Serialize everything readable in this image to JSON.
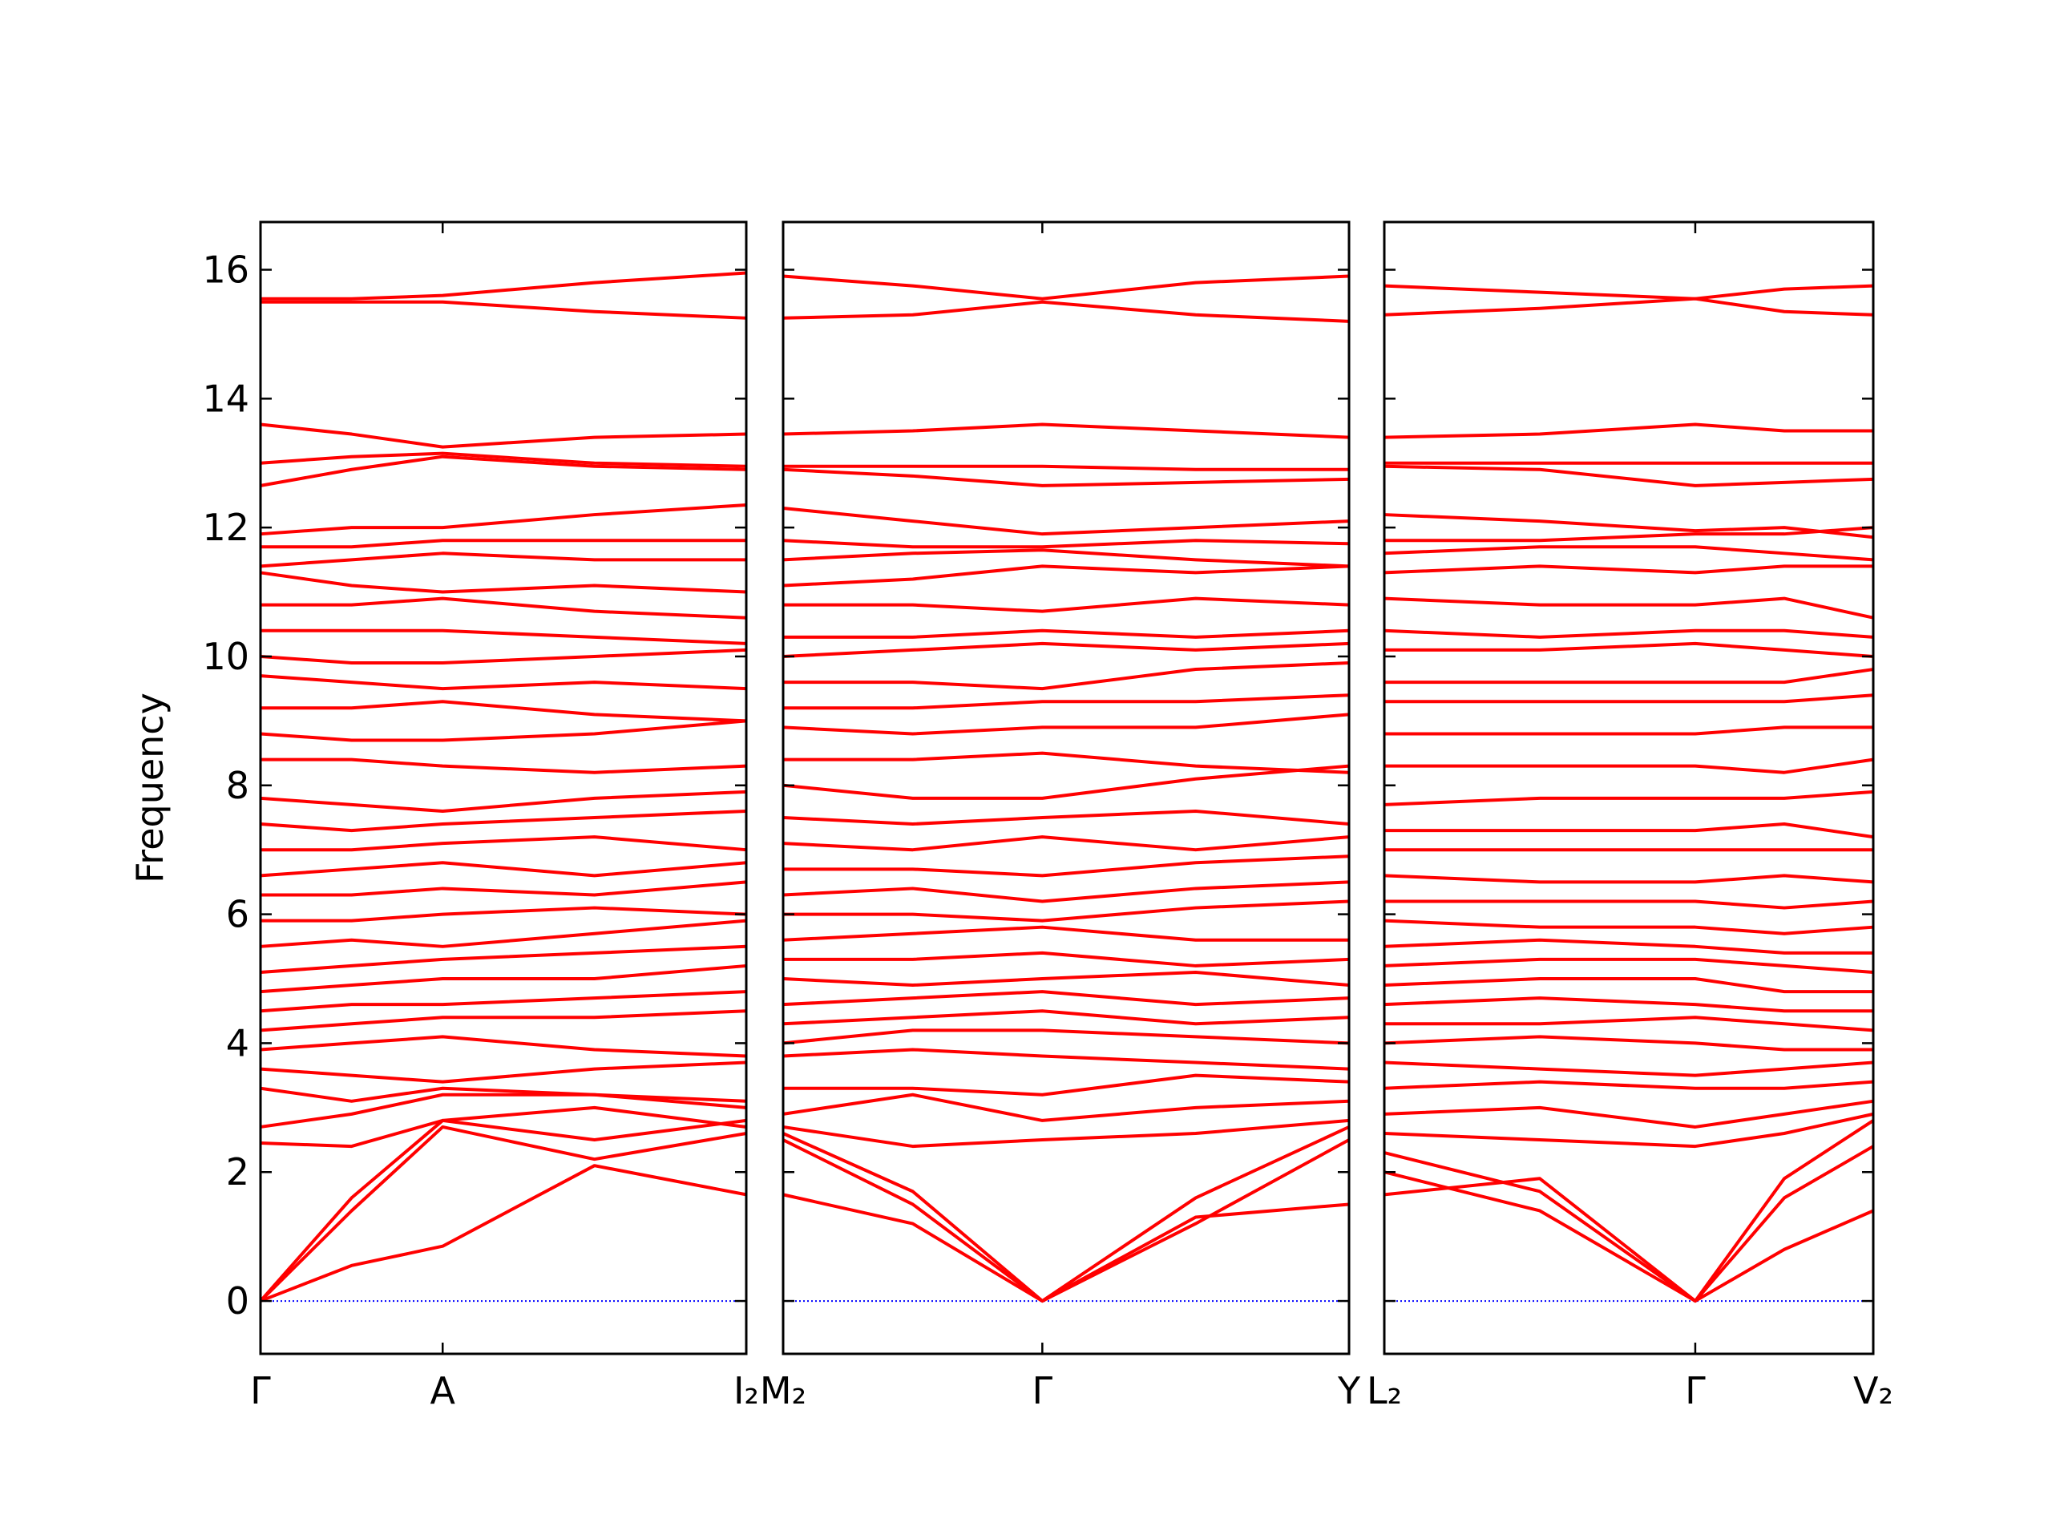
{
  "chart_data": [
    {
      "type": "line",
      "ylabel": "Frequency",
      "color": "#ff0000",
      "hline": 0,
      "hline_color": "#0000ff",
      "xlim": [
        0,
        1
      ],
      "xticks": [
        {
          "value": 0,
          "label": "Γ"
        },
        {
          "value": 0.375,
          "label": "A"
        },
        {
          "value": 1,
          "label": "I₂"
        }
      ],
      "ylim": [
        -0.82,
        16.74
      ],
      "yticks": [
        0,
        2,
        4,
        6,
        8,
        10,
        12,
        14,
        16
      ],
      "x": [
        0,
        0.1875,
        0.375,
        0.6875,
        1
      ],
      "series": [
        {
          "values": [
            0,
            0.55,
            0.85,
            2.1,
            1.65
          ]
        },
        {
          "values": [
            0,
            1.4,
            2.7,
            2.2,
            2.6
          ]
        },
        {
          "values": [
            0,
            1.6,
            2.8,
            2.5,
            2.8
          ]
        },
        {
          "values": [
            2.45,
            2.4,
            2.8,
            3.0,
            2.7
          ]
        },
        {
          "values": [
            2.7,
            2.9,
            3.2,
            3.2,
            3.0
          ]
        },
        {
          "values": [
            3.3,
            3.1,
            3.3,
            3.2,
            3.1
          ]
        },
        {
          "values": [
            3.6,
            3.5,
            3.4,
            3.6,
            3.7
          ]
        },
        {
          "values": [
            3.9,
            4.0,
            4.1,
            3.9,
            3.8
          ]
        },
        {
          "values": [
            4.2,
            4.3,
            4.4,
            4.4,
            4.5
          ]
        },
        {
          "values": [
            4.5,
            4.6,
            4.6,
            4.7,
            4.8
          ]
        },
        {
          "values": [
            4.8,
            4.9,
            5.0,
            5.0,
            5.2
          ]
        },
        {
          "values": [
            5.1,
            5.2,
            5.3,
            5.4,
            5.5
          ]
        },
        {
          "values": [
            5.5,
            5.6,
            5.5,
            5.7,
            5.9
          ]
        },
        {
          "values": [
            5.9,
            5.9,
            6.0,
            6.1,
            6.0
          ]
        },
        {
          "values": [
            6.3,
            6.3,
            6.4,
            6.3,
            6.5
          ]
        },
        {
          "values": [
            6.6,
            6.7,
            6.8,
            6.6,
            6.8
          ]
        },
        {
          "values": [
            7.0,
            7.0,
            7.1,
            7.2,
            7.0
          ]
        },
        {
          "values": [
            7.4,
            7.3,
            7.4,
            7.5,
            7.6
          ]
        },
        {
          "values": [
            7.8,
            7.7,
            7.6,
            7.8,
            7.9
          ]
        },
        {
          "values": [
            8.4,
            8.4,
            8.3,
            8.2,
            8.3
          ]
        },
        {
          "values": [
            8.8,
            8.7,
            8.7,
            8.8,
            9.0
          ]
        },
        {
          "values": [
            9.2,
            9.2,
            9.3,
            9.1,
            9.0
          ]
        },
        {
          "values": [
            9.7,
            9.6,
            9.5,
            9.6,
            9.5
          ]
        },
        {
          "values": [
            10.0,
            9.9,
            9.9,
            10.0,
            10.1
          ]
        },
        {
          "values": [
            10.4,
            10.4,
            10.4,
            10.3,
            10.2
          ]
        },
        {
          "values": [
            10.8,
            10.8,
            10.9,
            10.7,
            10.6
          ]
        },
        {
          "values": [
            11.3,
            11.1,
            11.0,
            11.1,
            11.0
          ]
        },
        {
          "values": [
            11.4,
            11.5,
            11.6,
            11.5,
            11.5
          ]
        },
        {
          "values": [
            11.7,
            11.7,
            11.8,
            11.8,
            11.8
          ]
        },
        {
          "values": [
            11.9,
            12.0,
            12.0,
            12.2,
            12.35
          ]
        },
        {
          "values": [
            12.65,
            12.9,
            13.1,
            12.95,
            12.9
          ]
        },
        {
          "values": [
            13.0,
            13.1,
            13.15,
            13.0,
            12.95
          ]
        },
        {
          "values": [
            13.6,
            13.45,
            13.25,
            13.4,
            13.45
          ]
        },
        {
          "values": [
            15.5,
            15.5,
            15.5,
            15.35,
            15.25
          ]
        },
        {
          "values": [
            15.55,
            15.55,
            15.6,
            15.8,
            15.95
          ]
        }
      ]
    },
    {
      "type": "line",
      "color": "#ff0000",
      "hline": 0,
      "hline_color": "#0000ff",
      "xlim": [
        0,
        1
      ],
      "xticks": [
        {
          "value": 0,
          "label": "M₂"
        },
        {
          "value": 0.458,
          "label": "Γ"
        },
        {
          "value": 1,
          "label": "Y"
        }
      ],
      "ylim": [
        -0.82,
        16.74
      ],
      "yticks": [
        0,
        2,
        4,
        6,
        8,
        10,
        12,
        14,
        16
      ],
      "x": [
        0,
        0.229,
        0.458,
        0.729,
        1
      ],
      "series": [
        {
          "values": [
            1.65,
            1.2,
            0,
            1.3,
            1.5
          ]
        },
        {
          "values": [
            2.5,
            1.5,
            0,
            1.2,
            2.5
          ]
        },
        {
          "values": [
            2.6,
            1.7,
            0,
            1.6,
            2.7
          ]
        },
        {
          "values": [
            2.7,
            2.4,
            2.5,
            2.6,
            2.8
          ]
        },
        {
          "values": [
            2.9,
            3.2,
            2.8,
            3.0,
            3.1
          ]
        },
        {
          "values": [
            3.3,
            3.3,
            3.2,
            3.5,
            3.4
          ]
        },
        {
          "values": [
            3.8,
            3.9,
            3.8,
            3.7,
            3.6
          ]
        },
        {
          "values": [
            4.0,
            4.2,
            4.2,
            4.1,
            4.0
          ]
        },
        {
          "values": [
            4.3,
            4.4,
            4.5,
            4.3,
            4.4
          ]
        },
        {
          "values": [
            4.6,
            4.7,
            4.8,
            4.6,
            4.7
          ]
        },
        {
          "values": [
            5.0,
            4.9,
            5.0,
            5.1,
            4.9
          ]
        },
        {
          "values": [
            5.3,
            5.3,
            5.4,
            5.2,
            5.3
          ]
        },
        {
          "values": [
            5.6,
            5.7,
            5.8,
            5.6,
            5.6
          ]
        },
        {
          "values": [
            6.0,
            6.0,
            5.9,
            6.1,
            6.2
          ]
        },
        {
          "values": [
            6.3,
            6.4,
            6.2,
            6.4,
            6.5
          ]
        },
        {
          "values": [
            6.7,
            6.7,
            6.6,
            6.8,
            6.9
          ]
        },
        {
          "values": [
            7.1,
            7.0,
            7.2,
            7.0,
            7.2
          ]
        },
        {
          "values": [
            7.5,
            7.4,
            7.5,
            7.6,
            7.4
          ]
        },
        {
          "values": [
            8.0,
            7.8,
            7.8,
            8.1,
            8.3
          ]
        },
        {
          "values": [
            8.4,
            8.4,
            8.5,
            8.3,
            8.2
          ]
        },
        {
          "values": [
            8.9,
            8.8,
            8.9,
            8.9,
            9.1
          ]
        },
        {
          "values": [
            9.2,
            9.2,
            9.3,
            9.3,
            9.4
          ]
        },
        {
          "values": [
            9.6,
            9.6,
            9.5,
            9.8,
            9.9
          ]
        },
        {
          "values": [
            10.0,
            10.1,
            10.2,
            10.1,
            10.2
          ]
        },
        {
          "values": [
            10.3,
            10.3,
            10.4,
            10.3,
            10.4
          ]
        },
        {
          "values": [
            10.8,
            10.8,
            10.7,
            10.9,
            10.8
          ]
        },
        {
          "values": [
            11.1,
            11.2,
            11.4,
            11.3,
            11.4
          ]
        },
        {
          "values": [
            11.5,
            11.6,
            11.65,
            11.5,
            11.4
          ]
        },
        {
          "values": [
            11.8,
            11.7,
            11.7,
            11.8,
            11.75
          ]
        },
        {
          "values": [
            12.3,
            12.1,
            11.9,
            12.0,
            12.1
          ]
        },
        {
          "values": [
            12.9,
            12.8,
            12.65,
            12.7,
            12.75
          ]
        },
        {
          "values": [
            12.95,
            12.95,
            12.95,
            12.9,
            12.9
          ]
        },
        {
          "values": [
            13.45,
            13.5,
            13.6,
            13.5,
            13.4
          ]
        },
        {
          "values": [
            15.9,
            15.75,
            15.55,
            15.8,
            15.9
          ]
        },
        {
          "values": [
            15.25,
            15.3,
            15.5,
            15.3,
            15.2
          ]
        }
      ]
    },
    {
      "type": "line",
      "color": "#ff0000",
      "hline": 0,
      "hline_color": "#0000ff",
      "xlim": [
        0,
        1
      ],
      "xticks": [
        {
          "value": 0,
          "label": "L₂"
        },
        {
          "value": 0.636,
          "label": "Γ"
        },
        {
          "value": 1,
          "label": "V₂"
        }
      ],
      "ylim": [
        -0.82,
        16.74
      ],
      "yticks": [
        0,
        2,
        4,
        6,
        8,
        10,
        12,
        14,
        16
      ],
      "x": [
        0,
        0.318,
        0.636,
        0.818,
        1
      ],
      "series": [
        {
          "values": [
            1.65,
            1.9,
            0,
            0.8,
            1.4
          ]
        },
        {
          "values": [
            2.0,
            1.4,
            0,
            1.6,
            2.4
          ]
        },
        {
          "values": [
            2.3,
            1.7,
            0,
            1.9,
            2.8
          ]
        },
        {
          "values": [
            2.6,
            2.5,
            2.4,
            2.6,
            2.9
          ]
        },
        {
          "values": [
            2.9,
            3.0,
            2.7,
            2.9,
            3.1
          ]
        },
        {
          "values": [
            3.3,
            3.4,
            3.3,
            3.3,
            3.4
          ]
        },
        {
          "values": [
            3.7,
            3.6,
            3.5,
            3.6,
            3.7
          ]
        },
        {
          "values": [
            4.0,
            4.1,
            4.0,
            3.9,
            3.9
          ]
        },
        {
          "values": [
            4.3,
            4.3,
            4.4,
            4.3,
            4.2
          ]
        },
        {
          "values": [
            4.6,
            4.7,
            4.6,
            4.5,
            4.5
          ]
        },
        {
          "values": [
            4.9,
            5.0,
            5.0,
            4.8,
            4.8
          ]
        },
        {
          "values": [
            5.2,
            5.3,
            5.3,
            5.2,
            5.1
          ]
        },
        {
          "values": [
            5.5,
            5.6,
            5.5,
            5.4,
            5.4
          ]
        },
        {
          "values": [
            5.9,
            5.8,
            5.8,
            5.7,
            5.8
          ]
        },
        {
          "values": [
            6.2,
            6.2,
            6.2,
            6.1,
            6.2
          ]
        },
        {
          "values": [
            6.6,
            6.5,
            6.5,
            6.6,
            6.5
          ]
        },
        {
          "values": [
            7.0,
            7.0,
            7.0,
            7.0,
            7.0
          ]
        },
        {
          "values": [
            7.3,
            7.3,
            7.3,
            7.4,
            7.2
          ]
        },
        {
          "values": [
            7.7,
            7.8,
            7.8,
            7.8,
            7.9
          ]
        },
        {
          "values": [
            8.3,
            8.3,
            8.3,
            8.2,
            8.4
          ]
        },
        {
          "values": [
            8.8,
            8.8,
            8.8,
            8.9,
            8.9
          ]
        },
        {
          "values": [
            9.3,
            9.3,
            9.3,
            9.3,
            9.4
          ]
        },
        {
          "values": [
            9.6,
            9.6,
            9.6,
            9.6,
            9.8
          ]
        },
        {
          "values": [
            10.1,
            10.1,
            10.2,
            10.1,
            10.0
          ]
        },
        {
          "values": [
            10.4,
            10.3,
            10.4,
            10.4,
            10.3
          ]
        },
        {
          "values": [
            10.9,
            10.8,
            10.8,
            10.9,
            10.6
          ]
        },
        {
          "values": [
            11.3,
            11.4,
            11.3,
            11.4,
            11.4
          ]
        },
        {
          "values": [
            11.6,
            11.7,
            11.7,
            11.6,
            11.5
          ]
        },
        {
          "values": [
            11.8,
            11.8,
            11.9,
            11.9,
            12.0
          ]
        },
        {
          "values": [
            12.2,
            12.1,
            11.95,
            12.0,
            11.85
          ]
        },
        {
          "values": [
            12.95,
            12.9,
            12.65,
            12.7,
            12.75
          ]
        },
        {
          "values": [
            13.0,
            13.0,
            13.0,
            13.0,
            13.0
          ]
        },
        {
          "values": [
            13.4,
            13.45,
            13.6,
            13.5,
            13.5
          ]
        },
        {
          "values": [
            15.75,
            15.65,
            15.55,
            15.7,
            15.75
          ]
        },
        {
          "values": [
            15.3,
            15.4,
            15.55,
            15.35,
            15.3
          ]
        }
      ]
    }
  ]
}
